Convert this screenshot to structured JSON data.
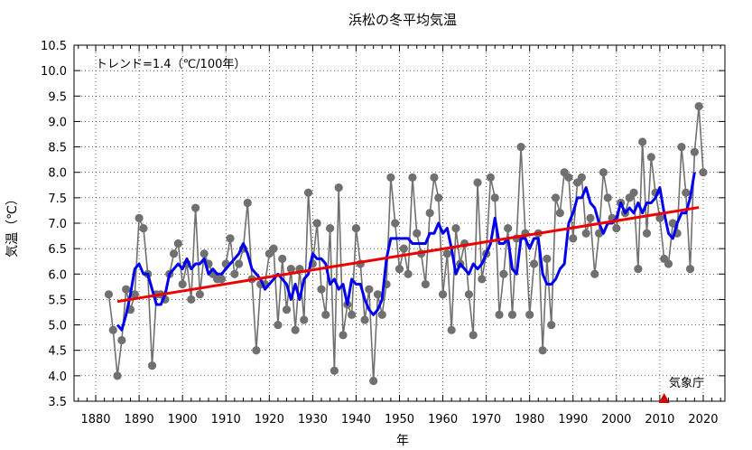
{
  "chart_data": {
    "type": "line",
    "title": "浜松の冬平均気温",
    "xlabel": "年",
    "ylabel": "気温（℃）",
    "xlim": [
      1875,
      2025
    ],
    "ylim": [
      3.5,
      10.5
    ],
    "xticks": [
      1880,
      1890,
      1900,
      1910,
      1920,
      1930,
      1940,
      1950,
      1960,
      1970,
      1980,
      1990,
      2000,
      2010,
      2020
    ],
    "yticks": [
      3.5,
      4.0,
      4.5,
      5.0,
      5.5,
      6.0,
      6.5,
      7.0,
      7.5,
      8.0,
      8.5,
      9.0,
      9.5,
      10.0,
      10.5
    ],
    "grid": true,
    "annotation": "トレンド=1.4（℃/100年）",
    "source": "気象庁",
    "source_marker_year": 2011,
    "colors": {
      "annual": "#707070",
      "moving_average": "#0000ee",
      "trend": "#ee0000",
      "marker": "#cc0000"
    },
    "series": [
      {
        "style": "gray points and line",
        "x": [
          1883,
          1884,
          1885,
          1886,
          1887,
          1888,
          1889,
          1890,
          1891,
          1892,
          1893,
          1894,
          1895,
          1896,
          1897,
          1898,
          1899,
          1900,
          1901,
          1902,
          1903,
          1904,
          1905,
          1906,
          1907,
          1908,
          1909,
          1910,
          1911,
          1912,
          1913,
          1914,
          1915,
          1916,
          1917,
          1918,
          1919,
          1920,
          1921,
          1922,
          1923,
          1924,
          1925,
          1926,
          1927,
          1928,
          1929,
          1930,
          1931,
          1932,
          1933,
          1934,
          1935,
          1936,
          1937,
          1938,
          1939,
          1940,
          1941,
          1942,
          1943,
          1944,
          1945,
          1946,
          1947,
          1948,
          1949,
          1950,
          1951,
          1952,
          1953,
          1954,
          1955,
          1956,
          1957,
          1958,
          1959,
          1960,
          1961,
          1962,
          1963,
          1964,
          1965,
          1966,
          1967,
          1968,
          1969,
          1970,
          1971,
          1972,
          1973,
          1974,
          1975,
          1976,
          1977,
          1978,
          1979,
          1980,
          1981,
          1982,
          1983,
          1984,
          1985,
          1986,
          1987,
          1988,
          1989,
          1990,
          1991,
          1992,
          1993,
          1994,
          1995,
          1996,
          1997,
          1998,
          1999,
          2000,
          2001,
          2002,
          2003,
          2004,
          2005,
          2006,
          2007,
          2008,
          2009,
          2010,
          2011,
          2012,
          2013,
          2014,
          2015,
          2016,
          2017,
          2018,
          2019,
          2020
        ],
        "y": [
          5.6,
          4.9,
          4.0,
          4.7,
          5.7,
          5.3,
          5.6,
          7.1,
          6.9,
          6.0,
          4.2,
          5.6,
          5.6,
          5.5,
          6.0,
          6.4,
          6.6,
          5.8,
          6.2,
          5.5,
          7.3,
          5.6,
          6.4,
          6.2,
          6.0,
          5.9,
          5.9,
          6.2,
          6.7,
          6.0,
          6.2,
          6.5,
          7.4,
          5.9,
          4.5,
          5.8,
          5.8,
          6.4,
          6.5,
          5.0,
          6.3,
          5.3,
          6.1,
          4.9,
          6.1,
          5.1,
          7.6,
          6.2,
          7.0,
          5.7,
          5.2,
          6.9,
          4.1,
          7.7,
          4.8,
          5.4,
          5.2,
          6.9,
          6.2,
          5.1,
          5.7,
          3.9,
          5.6,
          5.2,
          5.8,
          7.9,
          7.0,
          6.1,
          6.5,
          6.0,
          7.9,
          6.8,
          6.4,
          5.8,
          7.2,
          7.9,
          7.5,
          5.6,
          6.4,
          4.9,
          6.9,
          6.2,
          6.6,
          5.6,
          4.8,
          7.8,
          5.9,
          6.4,
          7.9,
          7.5,
          5.2,
          6.0,
          6.9,
          5.2,
          6.7,
          8.5,
          6.8,
          5.2,
          6.2,
          6.8,
          4.5,
          6.3,
          5.0,
          7.5,
          7.2,
          8.0,
          7.9,
          6.7,
          7.8,
          7.9,
          6.8,
          7.1,
          6.0,
          6.8,
          8.0,
          7.5,
          7.1,
          6.9,
          7.4,
          7.2,
          7.5,
          7.6,
          6.1,
          8.6,
          6.8,
          8.3,
          7.6,
          7.1,
          6.3,
          6.2,
          7.0,
          6.8,
          8.5,
          7.6,
          6.1,
          8.4,
          9.3,
          8.0
        ]
      },
      {
        "style": "blue line",
        "x": [
          1885,
          1886,
          1887,
          1888,
          1889,
          1890,
          1891,
          1892,
          1893,
          1894,
          1895,
          1896,
          1897,
          1898,
          1899,
          1900,
          1901,
          1902,
          1903,
          1904,
          1905,
          1906,
          1907,
          1908,
          1909,
          1910,
          1911,
          1912,
          1913,
          1914,
          1915,
          1916,
          1917,
          1918,
          1919,
          1920,
          1921,
          1922,
          1923,
          1924,
          1925,
          1926,
          1927,
          1928,
          1929,
          1930,
          1931,
          1932,
          1933,
          1934,
          1935,
          1936,
          1937,
          1938,
          1939,
          1940,
          1941,
          1942,
          1943,
          1944,
          1945,
          1946,
          1947,
          1948,
          1949,
          1950,
          1951,
          1952,
          1953,
          1954,
          1955,
          1956,
          1957,
          1958,
          1959,
          1960,
          1961,
          1962,
          1963,
          1964,
          1965,
          1966,
          1967,
          1968,
          1969,
          1970,
          1971,
          1972,
          1973,
          1974,
          1975,
          1976,
          1977,
          1978,
          1979,
          1980,
          1981,
          1982,
          1983,
          1984,
          1985,
          1986,
          1987,
          1988,
          1989,
          1990,
          1991,
          1992,
          1993,
          1994,
          1995,
          1996,
          1997,
          1998,
          1999,
          2000,
          2001,
          2002,
          2003,
          2004,
          2005,
          2006,
          2007,
          2008,
          2009,
          2010,
          2011,
          2012,
          2013,
          2014,
          2015,
          2016,
          2017,
          2018
        ],
        "y": [
          5.0,
          4.9,
          5.2,
          5.6,
          6.1,
          6.2,
          6.0,
          6.0,
          5.7,
          5.4,
          5.4,
          5.6,
          6.0,
          6.1,
          6.2,
          6.1,
          6.3,
          6.1,
          6.2,
          6.2,
          6.3,
          6.0,
          6.1,
          6.0,
          6.0,
          6.1,
          6.2,
          6.3,
          6.4,
          6.6,
          6.4,
          6.1,
          6.0,
          5.9,
          5.7,
          5.8,
          5.9,
          6.0,
          5.9,
          5.8,
          5.5,
          5.8,
          5.5,
          5.9,
          6.0,
          6.4,
          6.3,
          6.3,
          6.2,
          5.8,
          5.9,
          5.7,
          5.8,
          5.4,
          5.9,
          5.8,
          5.8,
          5.5,
          5.3,
          5.2,
          5.3,
          5.5,
          6.3,
          6.7,
          6.7,
          6.7,
          6.7,
          6.7,
          6.6,
          6.6,
          6.6,
          6.6,
          6.8,
          6.8,
          7.0,
          6.8,
          6.9,
          6.5,
          6.0,
          6.2,
          6.1,
          6.0,
          6.2,
          6.1,
          6.2,
          6.4,
          6.6,
          7.1,
          6.6,
          6.6,
          6.7,
          6.1,
          6.0,
          6.7,
          6.7,
          6.5,
          6.7,
          6.7,
          6.0,
          5.8,
          5.8,
          5.9,
          6.1,
          6.2,
          7.0,
          7.2,
          7.5,
          7.5,
          7.7,
          7.4,
          7.3,
          7.0,
          6.8,
          7.0,
          7.0,
          7.1,
          7.4,
          7.2,
          7.3,
          7.2,
          7.4,
          7.2,
          7.4,
          7.4,
          7.5,
          7.7,
          7.2,
          6.8,
          6.7,
          7.0,
          7.2,
          7.2,
          7.5,
          8.0
        ]
      },
      {
        "style": "red trend line",
        "x": [
          1885,
          2019
        ],
        "y": [
          5.46,
          7.31
        ]
      }
    ]
  }
}
